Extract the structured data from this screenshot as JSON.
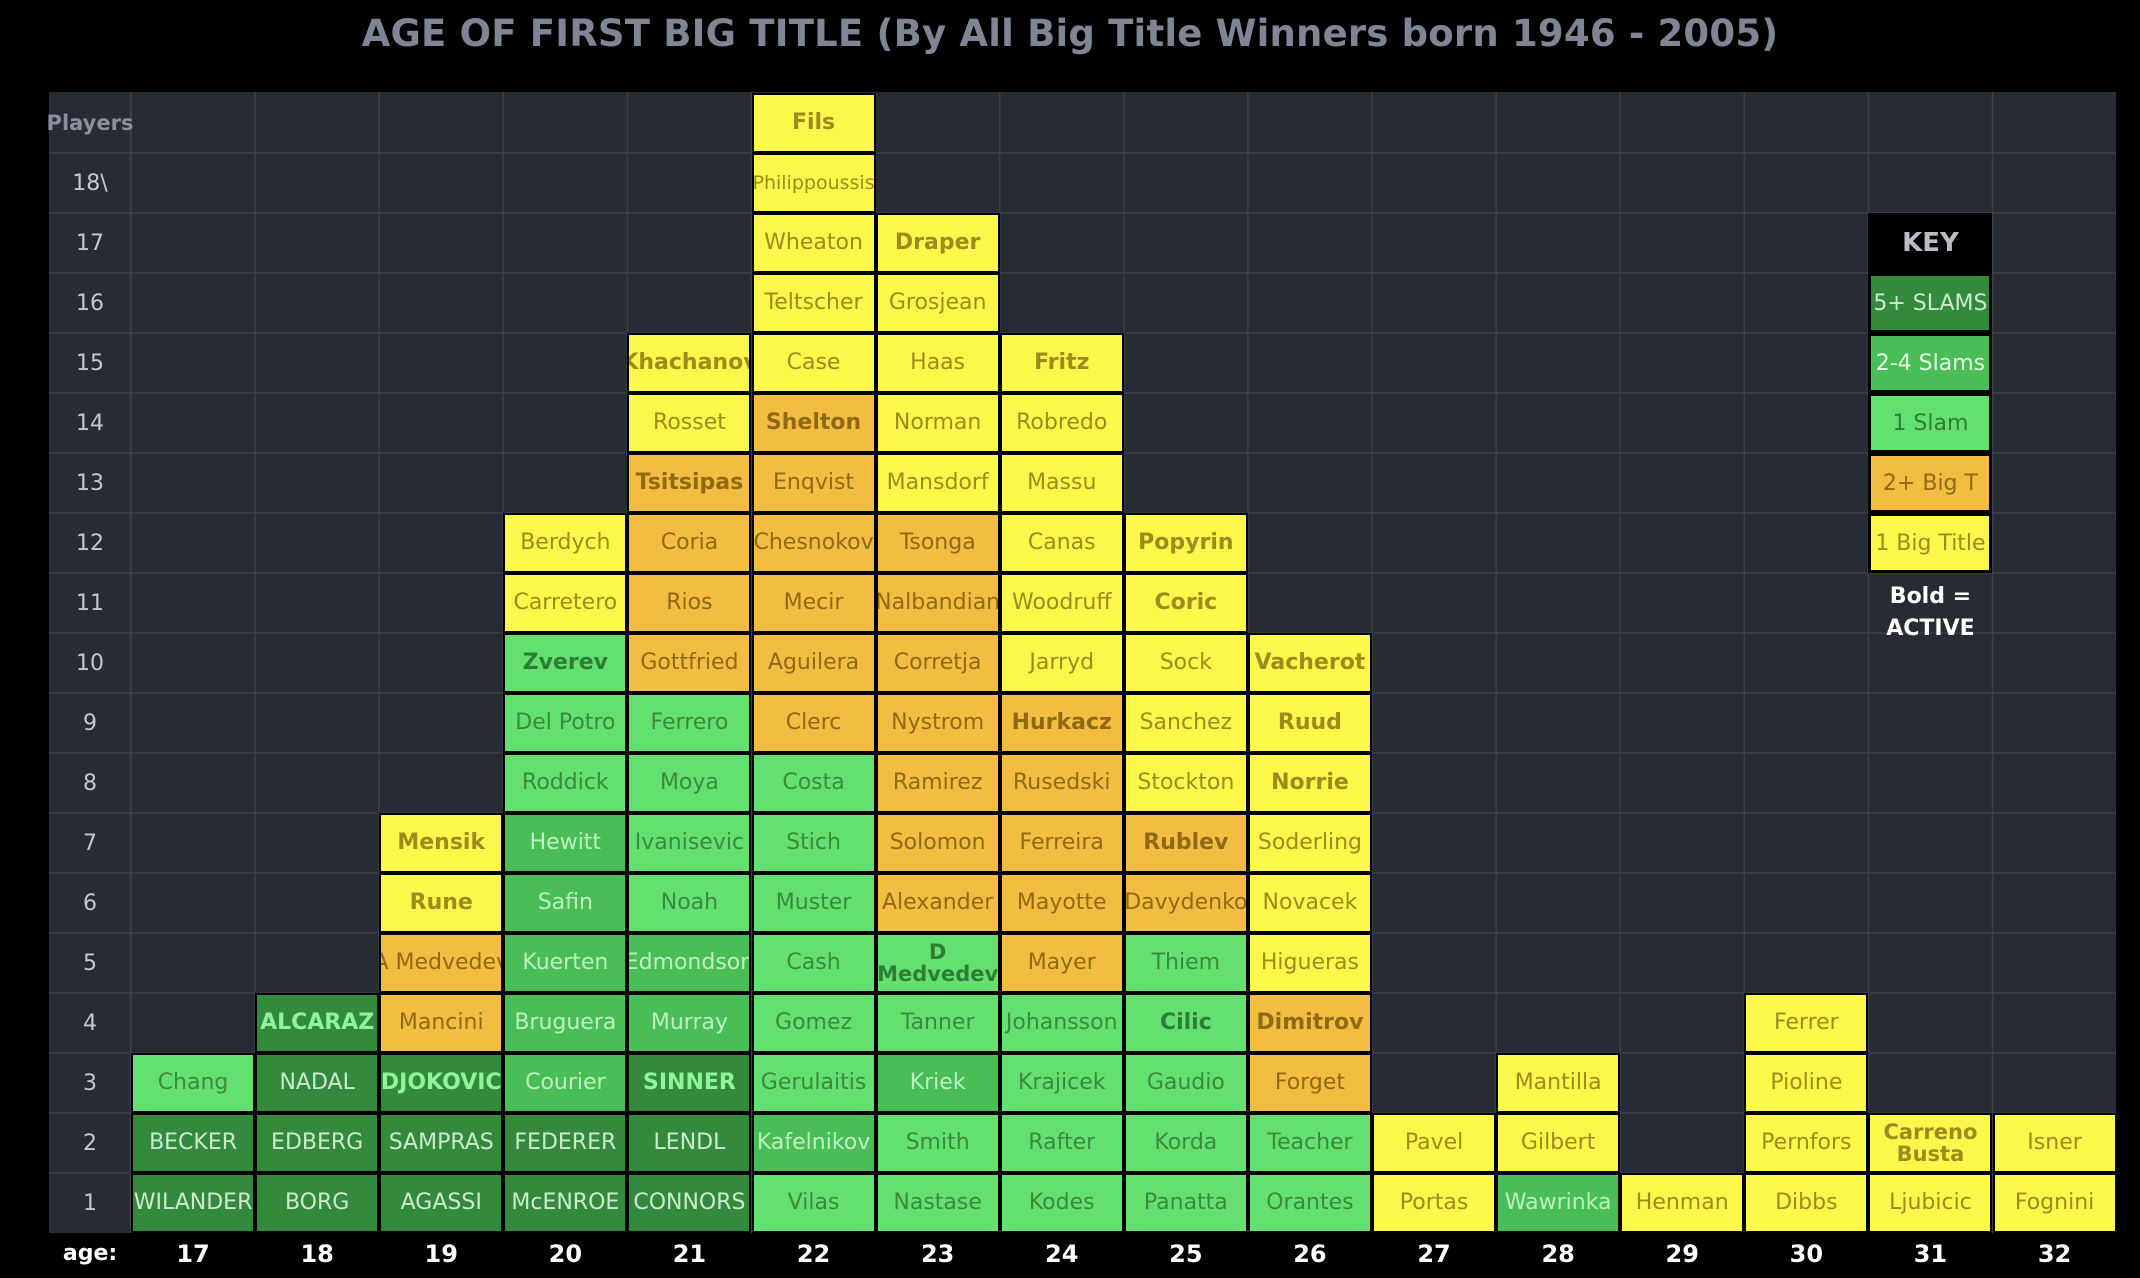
{
  "title": "AGE OF FIRST BIG TITLE (By All Big Title Winners born 1946 - 2005)",
  "chart_data": {
    "type": "table",
    "title": "AGE OF FIRST BIG TITLE (By All Big Title Winners born 1946 - 2005)",
    "y_header": "Players",
    "y_labels": [
      "1",
      "2",
      "3",
      "4",
      "5",
      "6",
      "7",
      "8",
      "9",
      "10",
      "11",
      "12",
      "13",
      "14",
      "15",
      "16",
      "17",
      "18\\"
    ],
    "x_header": "age:",
    "ages": [
      17,
      18,
      19,
      20,
      21,
      22,
      23,
      24,
      25,
      26,
      27,
      28,
      29,
      30,
      31,
      32
    ],
    "categories_legend": {
      "dark": "5+ SLAMS",
      "mid": "2-4 Slams",
      "light": "1 Slam",
      "orange": "2+ Big T",
      "yellow": "1 Big Title"
    },
    "columns": [
      {
        "age": 17,
        "players": [
          [
            "WILANDER",
            "dark",
            0
          ],
          [
            "BECKER",
            "dark",
            0
          ],
          [
            "Chang",
            "light",
            0
          ]
        ]
      },
      {
        "age": 18,
        "players": [
          [
            "BORG",
            "dark",
            0
          ],
          [
            "EDBERG",
            "dark",
            0
          ],
          [
            "NADAL",
            "dark",
            0
          ],
          [
            "ALCARAZ",
            "dark",
            1
          ]
        ]
      },
      {
        "age": 19,
        "players": [
          [
            "AGASSI",
            "dark",
            0
          ],
          [
            "SAMPRAS",
            "dark",
            0
          ],
          [
            "DJOKOVIC",
            "dark",
            1
          ],
          [
            "Mancini",
            "orange",
            0
          ],
          [
            "A Medvedev",
            "orange",
            0
          ],
          [
            "Rune",
            "yellow",
            1
          ],
          [
            "Mensik",
            "yellow",
            1
          ]
        ]
      },
      {
        "age": 20,
        "players": [
          [
            "McENROE",
            "dark",
            0
          ],
          [
            "FEDERER",
            "dark",
            0
          ],
          [
            "Courier",
            "mid",
            0
          ],
          [
            "Bruguera",
            "mid",
            0
          ],
          [
            "Kuerten",
            "mid",
            0
          ],
          [
            "Safin",
            "mid",
            0
          ],
          [
            "Hewitt",
            "mid",
            0
          ],
          [
            "Roddick",
            "light",
            0
          ],
          [
            "Del Potro",
            "light",
            0
          ],
          [
            "Zverev",
            "light",
            1
          ],
          [
            "Carretero",
            "yellow",
            0
          ],
          [
            "Berdych",
            "yellow",
            0
          ]
        ]
      },
      {
        "age": 21,
        "players": [
          [
            "CONNORS",
            "dark",
            0
          ],
          [
            "LENDL",
            "dark",
            0
          ],
          [
            "SINNER",
            "dark",
            1
          ],
          [
            "Murray",
            "mid",
            0
          ],
          [
            "Edmondson",
            "mid",
            0
          ],
          [
            "Noah",
            "light",
            0
          ],
          [
            "Ivanisevic",
            "light",
            0
          ],
          [
            "Moya",
            "light",
            0
          ],
          [
            "Ferrero",
            "light",
            0
          ],
          [
            "Gottfried",
            "orange",
            0
          ],
          [
            "Rios",
            "orange",
            0
          ],
          [
            "Coria",
            "orange",
            0
          ],
          [
            "Tsitsipas",
            "orange",
            1
          ],
          [
            "Rosset",
            "yellow",
            0
          ],
          [
            "Khachanov",
            "yellow",
            1
          ]
        ]
      },
      {
        "age": 22,
        "players": [
          [
            "Vilas",
            "light",
            0
          ],
          [
            "Kafelnikov",
            "mid",
            0
          ],
          [
            "Gerulaitis",
            "light",
            0
          ],
          [
            "Gomez",
            "light",
            0
          ],
          [
            "Cash",
            "light",
            0
          ],
          [
            "Muster",
            "light",
            0
          ],
          [
            "Stich",
            "light",
            0
          ],
          [
            "Costa",
            "light",
            0
          ],
          [
            "Clerc",
            "orange",
            0
          ],
          [
            "Aguilera",
            "orange",
            0
          ],
          [
            "Mecir",
            "orange",
            0
          ],
          [
            "Chesnokov",
            "orange",
            0
          ],
          [
            "Enqvist",
            "orange",
            0
          ],
          [
            "Shelton",
            "orange",
            1
          ],
          [
            "Case",
            "yellow",
            0
          ],
          [
            "Teltscher",
            "yellow",
            0
          ],
          [
            "Wheaton",
            "yellow",
            0
          ],
          [
            "Philippoussis",
            "yellow",
            0
          ],
          [
            "Fils",
            "yellow",
            1
          ]
        ]
      },
      {
        "age": 23,
        "players": [
          [
            "Nastase",
            "light",
            0
          ],
          [
            "Smith",
            "light",
            0
          ],
          [
            "Kriek",
            "mid",
            0
          ],
          [
            "Tanner",
            "light",
            0
          ],
          [
            "D Medvedev",
            "light",
            1
          ],
          [
            "Alexander",
            "orange",
            0
          ],
          [
            "Solomon",
            "orange",
            0
          ],
          [
            "Ramirez",
            "orange",
            0
          ],
          [
            "Nystrom",
            "orange",
            0
          ],
          [
            "Corretja",
            "orange",
            0
          ],
          [
            "Nalbandian",
            "orange",
            0
          ],
          [
            "Tsonga",
            "orange",
            0
          ],
          [
            "Mansdorf",
            "yellow",
            0
          ],
          [
            "Norman",
            "yellow",
            0
          ],
          [
            "Haas",
            "yellow",
            0
          ],
          [
            "Grosjean",
            "yellow",
            0
          ],
          [
            "Draper",
            "yellow",
            1
          ]
        ]
      },
      {
        "age": 24,
        "players": [
          [
            "Kodes",
            "light",
            0
          ],
          [
            "Rafter",
            "light",
            0
          ],
          [
            "Krajicek",
            "light",
            0
          ],
          [
            "Johansson",
            "light",
            0
          ],
          [
            "Mayer",
            "orange",
            0
          ],
          [
            "Mayotte",
            "orange",
            0
          ],
          [
            "Ferreira",
            "orange",
            0
          ],
          [
            "Rusedski",
            "orange",
            0
          ],
          [
            "Hurkacz",
            "orange",
            1
          ],
          [
            "Jarryd",
            "yellow",
            0
          ],
          [
            "Woodruff",
            "yellow",
            0
          ],
          [
            "Canas",
            "yellow",
            0
          ],
          [
            "Massu",
            "yellow",
            0
          ],
          [
            "Robredo",
            "yellow",
            0
          ],
          [
            "Fritz",
            "yellow",
            1
          ]
        ]
      },
      {
        "age": 25,
        "players": [
          [
            "Panatta",
            "light",
            0
          ],
          [
            "Korda",
            "light",
            0
          ],
          [
            "Gaudio",
            "light",
            0
          ],
          [
            "Cilic",
            "light",
            1
          ],
          [
            "Thiem",
            "light",
            0
          ],
          [
            "Davydenko",
            "orange",
            0
          ],
          [
            "Rublev",
            "orange",
            1
          ],
          [
            "Stockton",
            "yellow",
            0
          ],
          [
            "Sanchez",
            "yellow",
            0
          ],
          [
            "Sock",
            "yellow",
            0
          ],
          [
            "Coric",
            "yellow",
            1
          ],
          [
            "Popyrin",
            "yellow",
            1
          ]
        ]
      },
      {
        "age": 26,
        "players": [
          [
            "Orantes",
            "light",
            0
          ],
          [
            "Teacher",
            "light",
            0
          ],
          [
            "Forget",
            "orange",
            0
          ],
          [
            "Dimitrov",
            "orange",
            1
          ],
          [
            "Higueras",
            "yellow",
            0
          ],
          [
            "Novacek",
            "yellow",
            0
          ],
          [
            "Soderling",
            "yellow",
            0
          ],
          [
            "Norrie",
            "yellow",
            1
          ],
          [
            "Ruud",
            "yellow",
            1
          ],
          [
            "Vacherot",
            "yellow",
            1
          ]
        ]
      },
      {
        "age": 27,
        "players": [
          [
            "Portas",
            "yellow",
            0
          ],
          [
            "Pavel",
            "yellow",
            0
          ]
        ]
      },
      {
        "age": 28,
        "players": [
          [
            "Wawrinka",
            "mid",
            0
          ],
          [
            "Gilbert",
            "yellow",
            0
          ],
          [
            "Mantilla",
            "yellow",
            0
          ]
        ]
      },
      {
        "age": 29,
        "players": [
          [
            "Henman",
            "yellow",
            0
          ]
        ]
      },
      {
        "age": 30,
        "players": [
          [
            "Dibbs",
            "yellow",
            0
          ],
          [
            "Pernfors",
            "yellow",
            0
          ],
          [
            "Pioline",
            "yellow",
            0
          ],
          [
            "Ferrer",
            "yellow",
            0
          ]
        ]
      },
      {
        "age": 31,
        "players": [
          [
            "Ljubicic",
            "yellow",
            0
          ],
          [
            "Carreno Busta",
            "yellow",
            1
          ]
        ]
      },
      {
        "age": 32,
        "players": [
          [
            "Fognini",
            "yellow",
            0
          ],
          [
            "Isner",
            "yellow",
            0
          ]
        ]
      }
    ]
  },
  "key": {
    "title": "KEY",
    "items": [
      {
        "label": "5+ SLAMS",
        "cls": "dark"
      },
      {
        "label": "2-4 Slams",
        "cls": "mid"
      },
      {
        "label": "1 Slam",
        "cls": "light"
      },
      {
        "label": "2+ Big T",
        "cls": "orange"
      },
      {
        "label": "1 Big Title",
        "cls": "yellow"
      }
    ],
    "bold_note_line1": "Bold =",
    "bold_note_line2": "ACTIVE"
  },
  "colors": {
    "dark": "#338a3d",
    "mid": "#49bd56",
    "light": "#64e070",
    "orange": "#f2bd41",
    "yellow": "#fbf84b",
    "board": "#272b34",
    "gridline": "#3a3f4a"
  }
}
